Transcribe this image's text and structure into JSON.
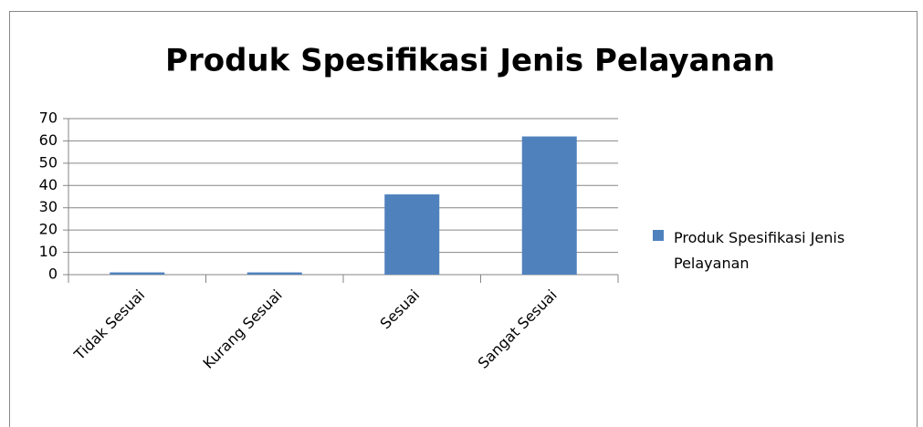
{
  "chart_data": {
    "type": "bar",
    "title": "Produk Spesifikasi Jenis Pelayanan",
    "categories": [
      "Tidak Sesuai",
      "Kurang Sesuai",
      "Sesuai",
      "Sangat Sesuai"
    ],
    "series": [
      {
        "name": "Produk Spesifikasi Jenis Pelayanan",
        "color": "#4f81bd",
        "values": [
          1,
          1,
          36,
          62
        ]
      }
    ],
    "ylim": [
      0,
      70
    ],
    "yticks": [
      0,
      10,
      20,
      30,
      40,
      50,
      60,
      70
    ],
    "grid": true,
    "legend": "right"
  }
}
